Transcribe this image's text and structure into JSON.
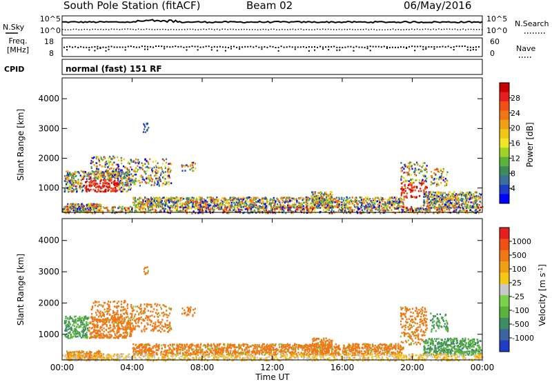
{
  "header": {
    "station": "South Pole Station (fitACF)",
    "beam": "Beam 02",
    "date": "06/May/2016"
  },
  "labels": {
    "nsky": "N.Sky",
    "freq_line1": "Freq.",
    "freq_line2": "[MHz]",
    "cpid": "CPID",
    "nsearch": "N.Search",
    "nave": "Nave",
    "mode": "normal (fast) 151 RF",
    "time_axis": "Time UT"
  },
  "chart_data": [
    {
      "type": "line",
      "name": "noise",
      "left_ticks": [
        "10^5",
        "10^0"
      ],
      "right_ticks": [
        "10^5",
        "10^0"
      ],
      "series": [
        {
          "name": "N.Sky",
          "style": "solid"
        },
        {
          "name": "N.Search",
          "style": "dotted"
        }
      ]
    },
    {
      "type": "scatter",
      "name": "frequency-nave",
      "left_ticks": [
        "18",
        "8"
      ],
      "right_ticks": [
        "60",
        "0"
      ]
    },
    {
      "type": "heatmap",
      "name": "power",
      "xlabel": "Time UT",
      "ylabel": "Slant Range [km]",
      "x_ticks": [
        "00:00",
        "04:00",
        "08:00",
        "12:00",
        "16:00",
        "20:00",
        "00:00"
      ],
      "y_ticks": [
        1000,
        2000,
        3000,
        4000
      ],
      "ylim": [
        180,
        4700
      ],
      "colorbar": {
        "label": "Power [dB]",
        "ticks": [
          "4",
          "8",
          "12",
          "16",
          "20",
          "24",
          "28"
        ],
        "colors": [
          "#0000ff",
          "#1e3cc8",
          "#3c6e9b",
          "#3c8c5a",
          "#5ab43c",
          "#a0d228",
          "#f0e628",
          "#f0c814",
          "#f0a014",
          "#f07814",
          "#f05014",
          "#e61e1e",
          "#c80000"
        ]
      }
    },
    {
      "type": "heatmap",
      "name": "velocity",
      "xlabel": "Time UT",
      "ylabel": "Slant Range [km]",
      "x_ticks": [
        "00:00",
        "04:00",
        "08:00",
        "12:00",
        "16:00",
        "20:00",
        "00:00"
      ],
      "y_ticks": [
        1000,
        2000,
        3000,
        4000
      ],
      "ylim": [
        180,
        4700
      ],
      "colorbar": {
        "label": "Velocity [m s",
        "label_sup": "-1",
        "label_end": "]",
        "ticks": [
          "1000",
          "500",
          "100",
          "25",
          "-25",
          "-100",
          "-500",
          "-1000"
        ],
        "colors": [
          "#1e3cc8",
          "#3c64a0",
          "#3c8c64",
          "#5ab43c",
          "#7ad24a",
          "#c8c8c8",
          "#f5c814",
          "#f0a014",
          "#f07814",
          "#f05014",
          "#e61e1e"
        ]
      }
    }
  ]
}
